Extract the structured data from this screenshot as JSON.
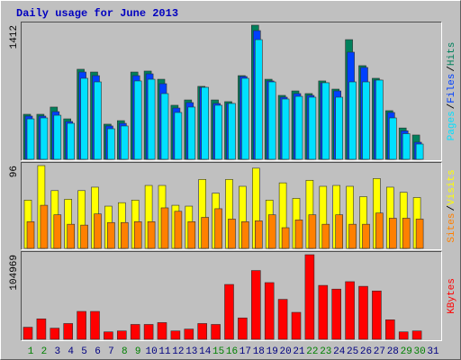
{
  "chart_data": [
    {
      "type": "bar",
      "title": "Daily usage for June 2013",
      "ylim": [
        0,
        1412
      ],
      "yticks": [
        1412
      ],
      "legend_separator": "/",
      "series": [
        {
          "name": "Hits",
          "color": "#00805c",
          "values": [
            474,
            474,
            550,
            426,
            948,
            919,
            370,
            407,
            919,
            929,
            843,
            569,
            625,
            768,
            625,
            607,
            881,
            1412,
            843,
            673,
            720,
            692,
            825,
            739,
            1260,
            986,
            853,
            512,
            330,
            256,
            null
          ]
        },
        {
          "name": "Files",
          "color": "#0040ff",
          "values": [
            455,
            455,
            502,
            398,
            919,
            881,
            351,
            379,
            881,
            900,
            796,
            540,
            597,
            758,
            588,
            588,
            872,
            1355,
            825,
            654,
            692,
            673,
            806,
            720,
            1128,
            967,
            834,
            493,
            300,
            180,
            null
          ]
        },
        {
          "name": "Pages",
          "color": "#00e0ff",
          "values": [
            426,
            436,
            464,
            379,
            853,
            815,
            322,
            351,
            825,
            843,
            692,
            493,
            550,
            758,
            569,
            588,
            853,
            1260,
            815,
            635,
            663,
            654,
            806,
            654,
            815,
            815,
            834,
            436,
            270,
            161,
            null
          ]
        }
      ]
    },
    {
      "type": "bar",
      "ylim": [
        0,
        96
      ],
      "yticks": [
        96
      ],
      "legend_separator": "/",
      "series": [
        {
          "name": "Visits",
          "color": "#ffff00",
          "values": [
            56,
            96,
            67,
            57,
            67,
            71,
            49,
            53,
            56,
            73,
            73,
            50,
            49,
            80,
            64,
            80,
            72,
            93,
            56,
            76,
            58,
            79,
            72,
            73,
            72,
            60,
            81,
            71,
            65,
            59,
            null
          ]
        },
        {
          "name": "Sites",
          "color": "#ff8000",
          "values": [
            31,
            50,
            39,
            28,
            27,
            40,
            30,
            30,
            31,
            31,
            47,
            43,
            31,
            36,
            46,
            34,
            31,
            32,
            39,
            24,
            33,
            39,
            28,
            39,
            28,
            28,
            41,
            35,
            35,
            34,
            null
          ]
        }
      ]
    },
    {
      "type": "bar",
      "ylim": [
        0,
        104969
      ],
      "yticks": [
        104969
      ],
      "series": [
        {
          "name": "KBytes",
          "color": "#ff0000",
          "values": [
            15000,
            25376,
            13842,
            19600,
            34600,
            34600,
            9228,
            10380,
            18456,
            18456,
            20760,
            10380,
            12690,
            19600,
            18456,
            68054,
            26530,
            85357,
            70360,
            49600,
            33450,
            104969,
            66900,
            62287,
            71515,
            65747,
            59980,
            24223,
            9228,
            10380,
            null
          ]
        }
      ],
      "categories": [
        "1",
        "2",
        "3",
        "4",
        "5",
        "6",
        "7",
        "8",
        "9",
        "10",
        "11",
        "12",
        "13",
        "14",
        "15",
        "16",
        "17",
        "18",
        "19",
        "20",
        "21",
        "22",
        "23",
        "24",
        "25",
        "26",
        "27",
        "28",
        "29",
        "30",
        "31"
      ],
      "category_colors": [
        "#008000",
        "#008000",
        "#000080",
        "#000080",
        "#000080",
        "#000080",
        "#000080",
        "#008000",
        "#008000",
        "#000080",
        "#000080",
        "#000080",
        "#000080",
        "#000080",
        "#008000",
        "#008000",
        "#000080",
        "#000080",
        "#000080",
        "#000080",
        "#000080",
        "#008000",
        "#008000",
        "#000080",
        "#000080",
        "#000080",
        "#000080",
        "#000080",
        "#008000",
        "#008000",
        "#000080"
      ]
    }
  ]
}
